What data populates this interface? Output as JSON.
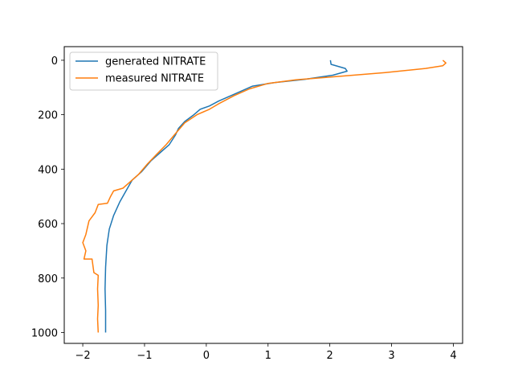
{
  "chart_data": {
    "type": "line",
    "title": "",
    "xlabel": "",
    "ylabel": "",
    "xlim": [
      -2.3,
      4.15
    ],
    "ylim": [
      1040,
      -50
    ],
    "y_inverted": true,
    "x_ticks": [
      -2,
      -1,
      0,
      1,
      2,
      3,
      4
    ],
    "x_tick_labels": [
      "−2",
      "−1",
      "0",
      "1",
      "2",
      "3",
      "4"
    ],
    "y_ticks": [
      0,
      200,
      400,
      600,
      800,
      1000
    ],
    "y_tick_labels": [
      "0",
      "200",
      "400",
      "600",
      "800",
      "1000"
    ],
    "grid": false,
    "legend_position": "top-left",
    "series": [
      {
        "name": "generated NITRATE",
        "color": "#1f77b4",
        "points": [
          [
            2.01,
            0
          ],
          [
            2.02,
            15
          ],
          [
            2.25,
            30
          ],
          [
            2.28,
            40
          ],
          [
            2.05,
            55
          ],
          [
            1.6,
            70
          ],
          [
            1.1,
            82
          ],
          [
            0.75,
            95
          ],
          [
            0.5,
            120
          ],
          [
            0.2,
            150
          ],
          [
            0.05,
            168
          ],
          [
            -0.1,
            180
          ],
          [
            -0.2,
            200
          ],
          [
            -0.35,
            225
          ],
          [
            -0.45,
            250
          ],
          [
            -0.5,
            275
          ],
          [
            -0.6,
            310
          ],
          [
            -0.75,
            340
          ],
          [
            -0.9,
            370
          ],
          [
            -1.05,
            410
          ],
          [
            -1.2,
            440
          ],
          [
            -1.3,
            480
          ],
          [
            -1.4,
            520
          ],
          [
            -1.5,
            570
          ],
          [
            -1.57,
            620
          ],
          [
            -1.61,
            680
          ],
          [
            -1.63,
            760
          ],
          [
            -1.64,
            840
          ],
          [
            -1.63,
            920
          ],
          [
            -1.63,
            1000
          ]
        ]
      },
      {
        "name": "measured NITRATE",
        "color": "#ff7f0e",
        "points": [
          [
            3.83,
            0
          ],
          [
            3.88,
            10
          ],
          [
            3.83,
            20
          ],
          [
            3.55,
            30
          ],
          [
            2.9,
            45
          ],
          [
            2.1,
            60
          ],
          [
            1.45,
            72
          ],
          [
            1.0,
            85
          ],
          [
            0.7,
            105
          ],
          [
            0.45,
            130
          ],
          [
            0.2,
            160
          ],
          [
            0.05,
            180
          ],
          [
            -0.15,
            200
          ],
          [
            -0.35,
            230
          ],
          [
            -0.5,
            270
          ],
          [
            -0.65,
            310
          ],
          [
            -0.8,
            345
          ],
          [
            -0.95,
            380
          ],
          [
            -1.1,
            420
          ],
          [
            -1.25,
            450
          ],
          [
            -1.35,
            470
          ],
          [
            -1.5,
            480
          ],
          [
            -1.55,
            500
          ],
          [
            -1.6,
            525
          ],
          [
            -1.75,
            530
          ],
          [
            -1.8,
            560
          ],
          [
            -1.9,
            590
          ],
          [
            -1.95,
            640
          ],
          [
            -2.0,
            670
          ],
          [
            -1.95,
            700
          ],
          [
            -1.98,
            730
          ],
          [
            -1.85,
            730
          ],
          [
            -1.82,
            780
          ],
          [
            -1.75,
            790
          ],
          [
            -1.76,
            840
          ],
          [
            -1.75,
            900
          ],
          [
            -1.76,
            950
          ],
          [
            -1.75,
            1000
          ]
        ]
      }
    ]
  }
}
